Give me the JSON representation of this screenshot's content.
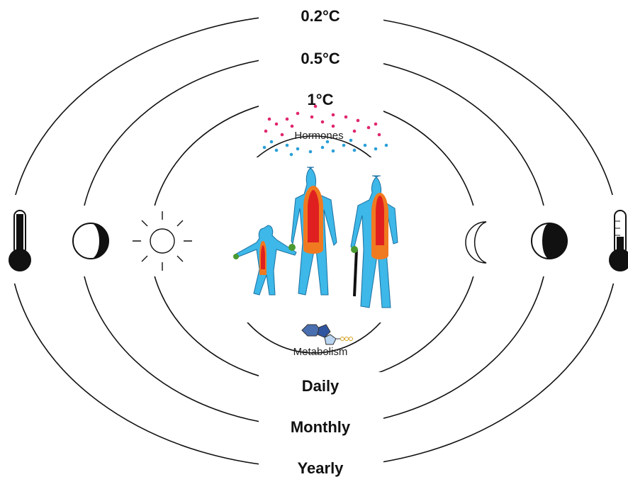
{
  "rings_top": {
    "labels": [
      "0.2°C",
      "0.5°C",
      "1°C"
    ]
  },
  "rings_bottom": {
    "labels": [
      "Daily",
      "Monthly",
      "Yearly"
    ]
  },
  "inner": {
    "top": "Hormones",
    "bottom": "Metabolism"
  }
}
